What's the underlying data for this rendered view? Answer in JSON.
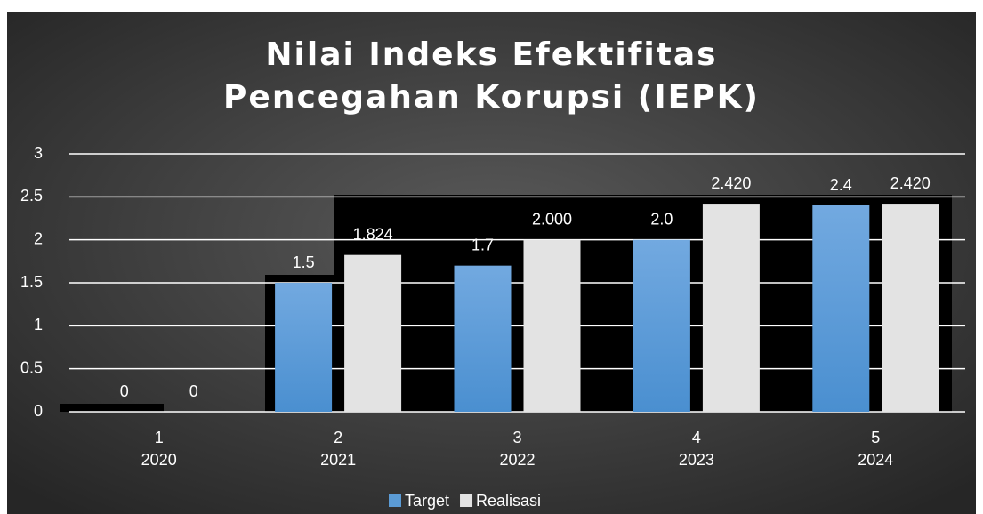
{
  "chart_data": {
    "type": "bar",
    "title": "Nilai Indeks Efektifitas Pencegahan Korupsi (IEPK)",
    "categories": [
      "1",
      "2",
      "3",
      "4",
      "5"
    ],
    "category_years": [
      "2020",
      "2021",
      "2022",
      "2023",
      "2024"
    ],
    "series": [
      {
        "name": "Target",
        "color": "#5b9bd5",
        "values": [
          0,
          1.5,
          1.7,
          2.0,
          2.4
        ],
        "value_labels": [
          "0",
          "1.5",
          "1.7",
          "2.0",
          "2.4"
        ]
      },
      {
        "name": "Realisasi",
        "color": "#e3e3e3",
        "values": [
          0,
          1.824,
          2.0,
          2.42,
          2.42
        ],
        "value_labels": [
          "0",
          "1.824",
          "2.000",
          "2.420",
          "2.420"
        ]
      }
    ],
    "ylim": [
      0,
      3
    ],
    "yticks": [
      0,
      0.5,
      1,
      1.5,
      2,
      2.5,
      3
    ],
    "grid": true,
    "legend": "bottom"
  }
}
